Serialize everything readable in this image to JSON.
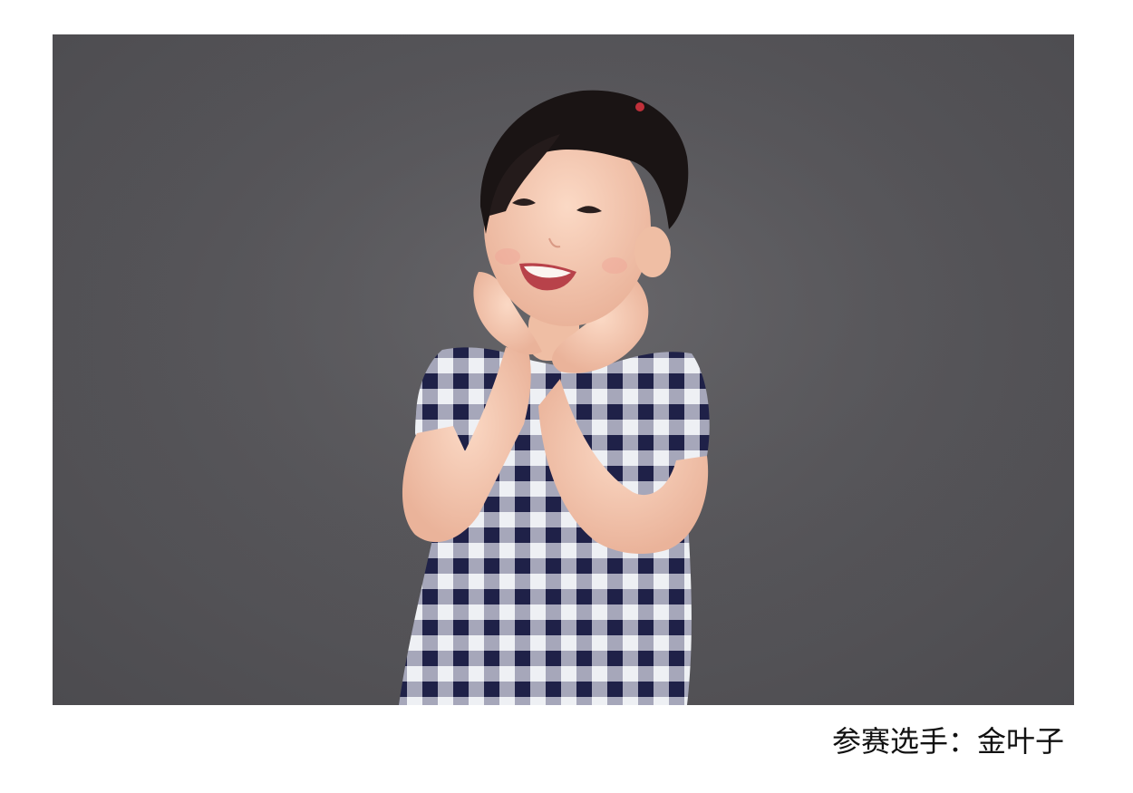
{
  "photo": {
    "background_color": "#555458",
    "dress_navy": "#1f2148",
    "dress_white": "#eef0f4",
    "skin": "#f6cbb3"
  },
  "caption": {
    "text": "参赛选手：金叶子"
  }
}
